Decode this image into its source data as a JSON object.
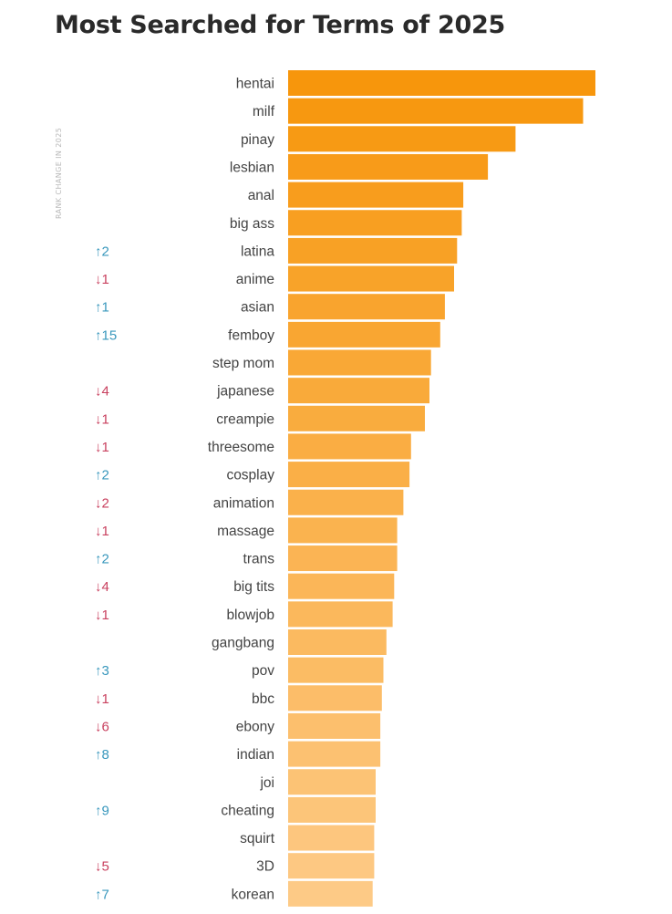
{
  "title": "Most Searched for Terms of 2025",
  "rank_change_axis_label": "RANK CHANGE IN 2025",
  "colors": {
    "bar_top": "#f7960c",
    "bar_bottom": "#fdca86",
    "change_up": "#3a98bd",
    "change_down": "#c9415f",
    "label_text": "#444444"
  },
  "chart_data": {
    "type": "bar",
    "orientation": "horizontal",
    "title": "Most Searched for Terms of 2025",
    "xlabel": "",
    "ylabel": "",
    "xlim": [
      0,
      100
    ],
    "grid": false,
    "values_unit": "relative (no axis printed)",
    "categories": [
      "hentai",
      "milf",
      "pinay",
      "lesbian",
      "anal",
      "big ass",
      "latina",
      "anime",
      "asian",
      "femboy",
      "step mom",
      "japanese",
      "creampie",
      "threesome",
      "cosplay",
      "animation",
      "massage",
      "trans",
      "big tits",
      "blowjob",
      "gangbang",
      "pov",
      "bbc",
      "ebony",
      "indian",
      "joi",
      "cheating",
      "squirt",
      "3D",
      "korean"
    ],
    "values": [
      100,
      96,
      74,
      65,
      57,
      56.5,
      55,
      54,
      51,
      49.5,
      46.5,
      46,
      44.5,
      40,
      39.5,
      37.5,
      35.5,
      35.5,
      34.5,
      34,
      32,
      31,
      30.5,
      30,
      30,
      28.5,
      28.5,
      28,
      28,
      27.5
    ],
    "rank_change": [
      "",
      "",
      "",
      "",
      "",
      "",
      "↑2",
      "↓1",
      "↑1",
      "↑15",
      "",
      "↓4",
      "↓1",
      "↓1",
      "↑2",
      "↓2",
      "↓1",
      "↑2",
      "↓4",
      "↓1",
      "",
      "↑3",
      "↓1",
      "↓6",
      "↑8",
      "",
      "↑9",
      "",
      "↓5",
      "↑7"
    ]
  }
}
